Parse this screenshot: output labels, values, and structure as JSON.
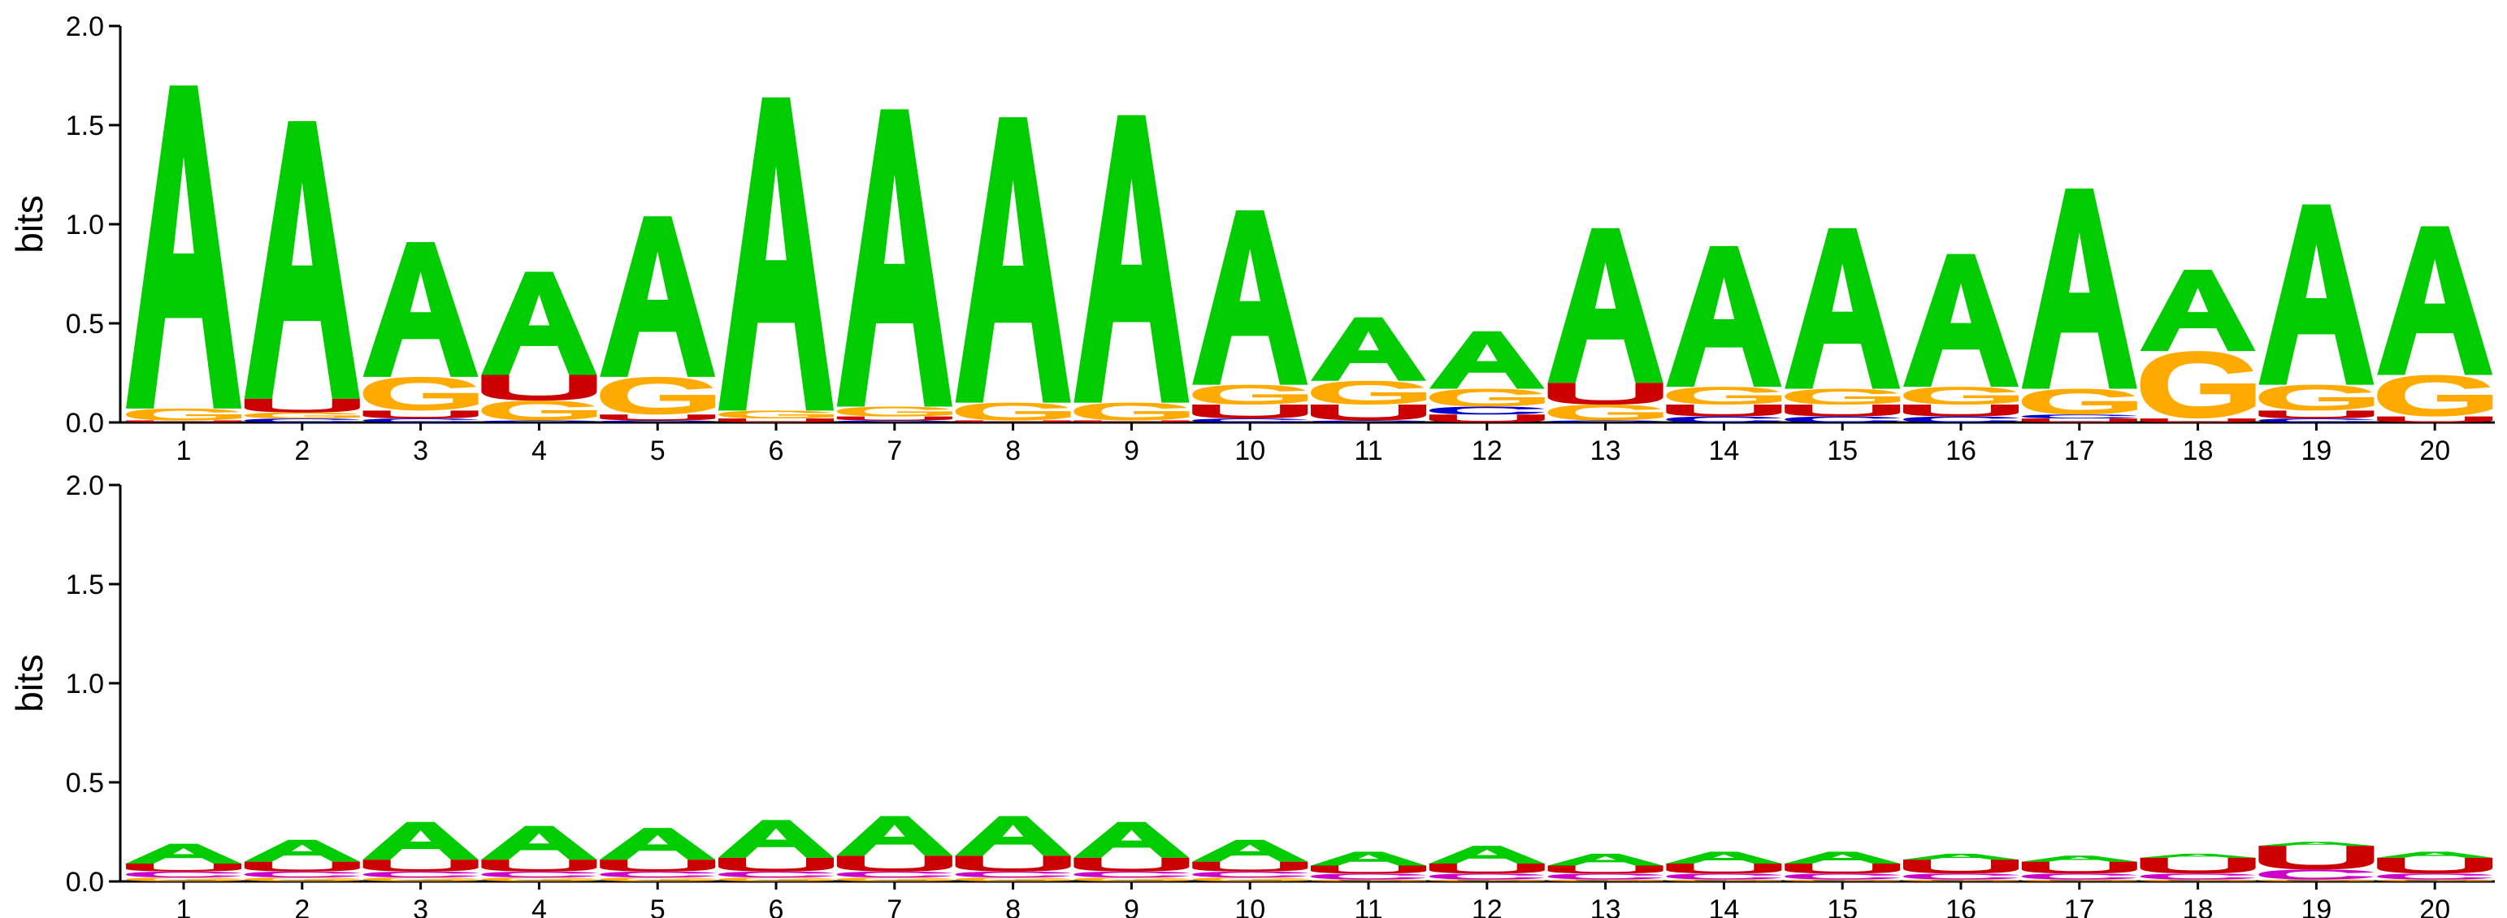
{
  "chart_data": [
    {
      "type": "sequence-logo",
      "ylabel": "bits",
      "ylim": [
        0,
        2.0
      ],
      "yticks": [
        "0.0",
        "0.5",
        "1.0",
        "1.5",
        "2.0"
      ],
      "positions": [
        "1",
        "2",
        "3",
        "4",
        "5",
        "6",
        "7",
        "8",
        "9",
        "10",
        "11",
        "12",
        "13",
        "14",
        "15",
        "16",
        "17",
        "18",
        "19",
        "20"
      ],
      "colors": {
        "A": "#00cc00",
        "G": "#ffaa00",
        "U": "#cc0000",
        "C": "#0000cc"
      },
      "stacks": [
        [
          {
            "letter": "U",
            "height": 0.01
          },
          {
            "letter": "G",
            "height": 0.06
          },
          {
            "letter": "A",
            "height": 1.63
          }
        ],
        [
          {
            "letter": "C",
            "height": 0.02
          },
          {
            "letter": "G",
            "height": 0.03
          },
          {
            "letter": "U",
            "height": 0.07
          },
          {
            "letter": "A",
            "height": 1.4
          }
        ],
        [
          {
            "letter": "C",
            "height": 0.02
          },
          {
            "letter": "U",
            "height": 0.04
          },
          {
            "letter": "G",
            "height": 0.17
          },
          {
            "letter": "A",
            "height": 0.68
          }
        ],
        [
          {
            "letter": "C",
            "height": 0.01
          },
          {
            "letter": "G",
            "height": 0.1
          },
          {
            "letter": "U",
            "height": 0.13
          },
          {
            "letter": "A",
            "height": 0.52
          }
        ],
        [
          {
            "letter": "C",
            "height": 0.01
          },
          {
            "letter": "U",
            "height": 0.03
          },
          {
            "letter": "G",
            "height": 0.19
          },
          {
            "letter": "A",
            "height": 0.81
          }
        ],
        [
          {
            "letter": "U",
            "height": 0.02
          },
          {
            "letter": "G",
            "height": 0.04
          },
          {
            "letter": "A",
            "height": 1.58
          }
        ],
        [
          {
            "letter": "C",
            "height": 0.01
          },
          {
            "letter": "U",
            "height": 0.02
          },
          {
            "letter": "G",
            "height": 0.05
          },
          {
            "letter": "A",
            "height": 1.5
          }
        ],
        [
          {
            "letter": "U",
            "height": 0.01
          },
          {
            "letter": "G",
            "height": 0.09
          },
          {
            "letter": "A",
            "height": 1.44
          }
        ],
        [
          {
            "letter": "U",
            "height": 0.01
          },
          {
            "letter": "G",
            "height": 0.09
          },
          {
            "letter": "A",
            "height": 1.45
          }
        ],
        [
          {
            "letter": "C",
            "height": 0.02
          },
          {
            "letter": "U",
            "height": 0.07
          },
          {
            "letter": "G",
            "height": 0.1
          },
          {
            "letter": "A",
            "height": 0.88
          }
        ],
        [
          {
            "letter": "C",
            "height": 0.01
          },
          {
            "letter": "U",
            "height": 0.08
          },
          {
            "letter": "G",
            "height": 0.12
          },
          {
            "letter": "A",
            "height": 0.32
          }
        ],
        [
          {
            "letter": "U",
            "height": 0.04
          },
          {
            "letter": "C",
            "height": 0.04
          },
          {
            "letter": "G",
            "height": 0.09
          },
          {
            "letter": "A",
            "height": 0.29
          }
        ],
        [
          {
            "letter": "C",
            "height": 0.01
          },
          {
            "letter": "G",
            "height": 0.08
          },
          {
            "letter": "U",
            "height": 0.11
          },
          {
            "letter": "A",
            "height": 0.78
          }
        ],
        [
          {
            "letter": "C",
            "height": 0.03
          },
          {
            "letter": "U",
            "height": 0.06
          },
          {
            "letter": "G",
            "height": 0.09
          },
          {
            "letter": "A",
            "height": 0.71
          }
        ],
        [
          {
            "letter": "C",
            "height": 0.03
          },
          {
            "letter": "U",
            "height": 0.06
          },
          {
            "letter": "G",
            "height": 0.08
          },
          {
            "letter": "A",
            "height": 0.81
          }
        ],
        [
          {
            "letter": "C",
            "height": 0.03
          },
          {
            "letter": "U",
            "height": 0.06
          },
          {
            "letter": "G",
            "height": 0.09
          },
          {
            "letter": "A",
            "height": 0.67
          }
        ],
        [
          {
            "letter": "U",
            "height": 0.02
          },
          {
            "letter": "C",
            "height": 0.02
          },
          {
            "letter": "G",
            "height": 0.13
          },
          {
            "letter": "A",
            "height": 1.01
          }
        ],
        [
          {
            "letter": "U",
            "height": 0.02
          },
          {
            "letter": "G",
            "height": 0.34
          },
          {
            "letter": "A",
            "height": 0.41
          }
        ],
        [
          {
            "letter": "C",
            "height": 0.02
          },
          {
            "letter": "U",
            "height": 0.04
          },
          {
            "letter": "G",
            "height": 0.13
          },
          {
            "letter": "A",
            "height": 0.91
          }
        ],
        [
          {
            "letter": "U",
            "height": 0.03
          },
          {
            "letter": "G",
            "height": 0.21
          },
          {
            "letter": "A",
            "height": 0.75
          }
        ]
      ]
    },
    {
      "type": "sequence-logo",
      "ylabel": "bits",
      "ylim": [
        0,
        2.0
      ],
      "yticks": [
        "0.0",
        "0.5",
        "1.0",
        "1.5",
        "2.0"
      ],
      "positions": [
        "1",
        "2",
        "3",
        "4",
        "5",
        "6",
        "7",
        "8",
        "9",
        "10",
        "11",
        "12",
        "13",
        "14",
        "15",
        "16",
        "17",
        "18",
        "19",
        "20"
      ],
      "colors": {
        "A": "#00cc00",
        "G": "#ffaa00",
        "U": "#cc0000",
        "C": "#0000cc",
        "other": "#cc00cc"
      },
      "stacks": [
        [
          {
            "letter": "G",
            "height": 0.02
          },
          {
            "letter": "other",
            "height": 0.03
          },
          {
            "letter": "U",
            "height": 0.04
          },
          {
            "letter": "A",
            "height": 0.1
          }
        ],
        [
          {
            "letter": "G",
            "height": 0.02
          },
          {
            "letter": "other",
            "height": 0.03
          },
          {
            "letter": "U",
            "height": 0.05
          },
          {
            "letter": "A",
            "height": 0.11
          }
        ],
        [
          {
            "letter": "G",
            "height": 0.02
          },
          {
            "letter": "other",
            "height": 0.03
          },
          {
            "letter": "U",
            "height": 0.06
          },
          {
            "letter": "A",
            "height": 0.19
          }
        ],
        [
          {
            "letter": "G",
            "height": 0.02
          },
          {
            "letter": "other",
            "height": 0.03
          },
          {
            "letter": "U",
            "height": 0.06
          },
          {
            "letter": "A",
            "height": 0.17
          }
        ],
        [
          {
            "letter": "G",
            "height": 0.02
          },
          {
            "letter": "other",
            "height": 0.03
          },
          {
            "letter": "U",
            "height": 0.06
          },
          {
            "letter": "A",
            "height": 0.16
          }
        ],
        [
          {
            "letter": "G",
            "height": 0.02
          },
          {
            "letter": "other",
            "height": 0.03
          },
          {
            "letter": "U",
            "height": 0.07
          },
          {
            "letter": "A",
            "height": 0.19
          }
        ],
        [
          {
            "letter": "G",
            "height": 0.02
          },
          {
            "letter": "other",
            "height": 0.03
          },
          {
            "letter": "U",
            "height": 0.08
          },
          {
            "letter": "A",
            "height": 0.2
          }
        ],
        [
          {
            "letter": "G",
            "height": 0.02
          },
          {
            "letter": "other",
            "height": 0.03
          },
          {
            "letter": "U",
            "height": 0.08
          },
          {
            "letter": "A",
            "height": 0.2
          }
        ],
        [
          {
            "letter": "G",
            "height": 0.02
          },
          {
            "letter": "other",
            "height": 0.03
          },
          {
            "letter": "U",
            "height": 0.07
          },
          {
            "letter": "A",
            "height": 0.18
          }
        ],
        [
          {
            "letter": "G",
            "height": 0.02
          },
          {
            "letter": "other",
            "height": 0.03
          },
          {
            "letter": "U",
            "height": 0.05
          },
          {
            "letter": "A",
            "height": 0.11
          }
        ],
        [
          {
            "letter": "G",
            "height": 0.01
          },
          {
            "letter": "other",
            "height": 0.03
          },
          {
            "letter": "U",
            "height": 0.04
          },
          {
            "letter": "A",
            "height": 0.07
          }
        ],
        [
          {
            "letter": "G",
            "height": 0.01
          },
          {
            "letter": "other",
            "height": 0.03
          },
          {
            "letter": "U",
            "height": 0.05
          },
          {
            "letter": "A",
            "height": 0.09
          }
        ],
        [
          {
            "letter": "G",
            "height": 0.01
          },
          {
            "letter": "other",
            "height": 0.03
          },
          {
            "letter": "U",
            "height": 0.04
          },
          {
            "letter": "A",
            "height": 0.06
          }
        ],
        [
          {
            "letter": "G",
            "height": 0.01
          },
          {
            "letter": "other",
            "height": 0.03
          },
          {
            "letter": "U",
            "height": 0.05
          },
          {
            "letter": "A",
            "height": 0.06
          }
        ],
        [
          {
            "letter": "G",
            "height": 0.01
          },
          {
            "letter": "other",
            "height": 0.03
          },
          {
            "letter": "U",
            "height": 0.05
          },
          {
            "letter": "A",
            "height": 0.06
          }
        ],
        [
          {
            "letter": "G",
            "height": 0.01
          },
          {
            "letter": "other",
            "height": 0.03
          },
          {
            "letter": "U",
            "height": 0.07
          },
          {
            "letter": "A",
            "height": 0.03
          }
        ],
        [
          {
            "letter": "G",
            "height": 0.01
          },
          {
            "letter": "other",
            "height": 0.03
          },
          {
            "letter": "U",
            "height": 0.06
          },
          {
            "letter": "A",
            "height": 0.03
          }
        ],
        [
          {
            "letter": "G",
            "height": 0.01
          },
          {
            "letter": "other",
            "height": 0.03
          },
          {
            "letter": "U",
            "height": 0.08
          },
          {
            "letter": "A",
            "height": 0.02
          }
        ],
        [
          {
            "letter": "G",
            "height": 0.01
          },
          {
            "letter": "other",
            "height": 0.05
          },
          {
            "letter": "U",
            "height": 0.12
          },
          {
            "letter": "A",
            "height": 0.02
          }
        ],
        [
          {
            "letter": "G",
            "height": 0.01
          },
          {
            "letter": "other",
            "height": 0.03
          },
          {
            "letter": "U",
            "height": 0.08
          },
          {
            "letter": "A",
            "height": 0.03
          }
        ]
      ]
    }
  ]
}
